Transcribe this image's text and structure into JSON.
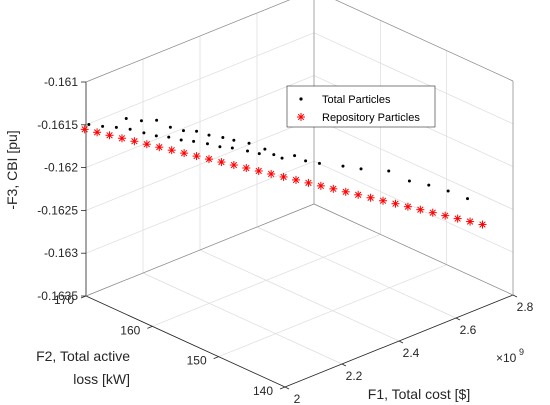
{
  "chart_data": {
    "type": "scatter",
    "projection": "3d",
    "grid": true,
    "legend_position": "top-right",
    "axes": {
      "x": {
        "label": "F1, Total cost [$]",
        "range": [
          2.0,
          2.8
        ],
        "ticks": [
          "2",
          "2.2",
          "2.4",
          "2.6",
          "2.8"
        ],
        "tick_values": [
          2.0,
          2.2,
          2.4,
          2.6,
          2.8
        ],
        "exponent_base": "×10",
        "exponent_power": "9"
      },
      "y": {
        "label_line1": "F2, Total active",
        "label_line2": "loss [kW]",
        "range": [
          140,
          170
        ],
        "ticks": [
          "140",
          "150",
          "160",
          "170"
        ],
        "tick_values": [
          140,
          150,
          160,
          170
        ]
      },
      "z": {
        "label": "-F3, CBI [pu]",
        "range": [
          -0.1635,
          -0.161
        ],
        "ticks": [
          "-0.1635",
          "-0.163",
          "-0.1625",
          "-0.162",
          "-0.1615",
          "-0.161"
        ],
        "tick_values": [
          -0.1635,
          -0.163,
          -0.1625,
          -0.162,
          -0.1615,
          -0.161
        ]
      }
    },
    "series": [
      {
        "name": "Total Particles",
        "marker": "dot",
        "color": "#000000",
        "points": [
          [
            2.01,
            170.0,
            -0.16151
          ],
          [
            2.035,
            169.0,
            -0.16153
          ],
          [
            2.06,
            168.0,
            -0.16154
          ],
          [
            2.085,
            167.0,
            -0.16156
          ],
          [
            2.09,
            167.8,
            -0.16147
          ],
          [
            2.11,
            166.0,
            -0.1616
          ],
          [
            2.12,
            166.8,
            -0.1615
          ],
          [
            2.135,
            165.2,
            -0.16164
          ],
          [
            2.15,
            165.8,
            -0.1615
          ],
          [
            2.16,
            164.4,
            -0.16166
          ],
          [
            2.175,
            164.8,
            -0.16158
          ],
          [
            2.185,
            163.6,
            -0.1617
          ],
          [
            2.2,
            163.9,
            -0.16162
          ],
          [
            2.21,
            162.8,
            -0.16172
          ],
          [
            2.225,
            163.0,
            -0.16163
          ],
          [
            2.24,
            162.0,
            -0.16176
          ],
          [
            2.25,
            162.2,
            -0.16168
          ],
          [
            2.265,
            161.2,
            -0.1618
          ],
          [
            2.28,
            161.4,
            -0.16172
          ],
          [
            2.29,
            160.4,
            -0.16182
          ],
          [
            2.3,
            160.6,
            -0.16175
          ],
          [
            2.32,
            159.4,
            -0.16186
          ],
          [
            2.33,
            159.6,
            -0.16179
          ],
          [
            2.345,
            158.7,
            -0.1619
          ],
          [
            2.36,
            158.5,
            -0.16186
          ],
          [
            2.375,
            157.8,
            -0.16192
          ],
          [
            2.39,
            157.2,
            -0.16196
          ],
          [
            2.42,
            156.6,
            -0.16195
          ],
          [
            2.44,
            155.8,
            -0.16201
          ],
          [
            2.47,
            155.0,
            -0.16205
          ],
          [
            2.52,
            153.6,
            -0.1621
          ],
          [
            2.56,
            152.6,
            -0.16215
          ],
          [
            2.62,
            151.0,
            -0.1622
          ],
          [
            2.66,
            149.6,
            -0.16232
          ],
          [
            2.7,
            148.4,
            -0.16238
          ],
          [
            2.74,
            147.2,
            -0.16246
          ],
          [
            2.78,
            146.0,
            -0.16256
          ]
        ]
      },
      {
        "name": "Repository Particles",
        "marker": "asterisk",
        "color": "#ff0000",
        "points": [
          [
            2.0,
            170.2,
            -0.16156
          ],
          [
            2.025,
            169.4,
            -0.1616
          ],
          [
            2.05,
            168.6,
            -0.16164
          ],
          [
            2.075,
            167.8,
            -0.16168
          ],
          [
            2.1,
            167.0,
            -0.16172
          ],
          [
            2.125,
            166.2,
            -0.16176
          ],
          [
            2.15,
            165.4,
            -0.1618
          ],
          [
            2.175,
            164.6,
            -0.16184
          ],
          [
            2.2,
            163.8,
            -0.16188
          ],
          [
            2.225,
            163.0,
            -0.16192
          ],
          [
            2.25,
            162.2,
            -0.16196
          ],
          [
            2.275,
            161.4,
            -0.162
          ],
          [
            2.3,
            160.6,
            -0.16204
          ],
          [
            2.325,
            159.8,
            -0.16208
          ],
          [
            2.35,
            159.0,
            -0.16212
          ],
          [
            2.375,
            158.2,
            -0.16216
          ],
          [
            2.4,
            157.4,
            -0.1622
          ],
          [
            2.425,
            156.6,
            -0.16224
          ],
          [
            2.45,
            155.8,
            -0.16228
          ],
          [
            2.475,
            155.0,
            -0.16232
          ],
          [
            2.5,
            154.2,
            -0.16236
          ],
          [
            2.525,
            153.4,
            -0.1624
          ],
          [
            2.55,
            152.6,
            -0.16244
          ],
          [
            2.575,
            151.8,
            -0.16248
          ],
          [
            2.6,
            151.0,
            -0.16252
          ],
          [
            2.625,
            150.2,
            -0.16256
          ],
          [
            2.65,
            149.4,
            -0.1626
          ],
          [
            2.675,
            148.6,
            -0.16264
          ],
          [
            2.7,
            147.8,
            -0.16268
          ],
          [
            2.725,
            147.0,
            -0.16272
          ],
          [
            2.75,
            146.2,
            -0.16276
          ],
          [
            2.775,
            145.4,
            -0.1628
          ],
          [
            2.8,
            144.6,
            -0.16284
          ]
        ]
      }
    ]
  }
}
